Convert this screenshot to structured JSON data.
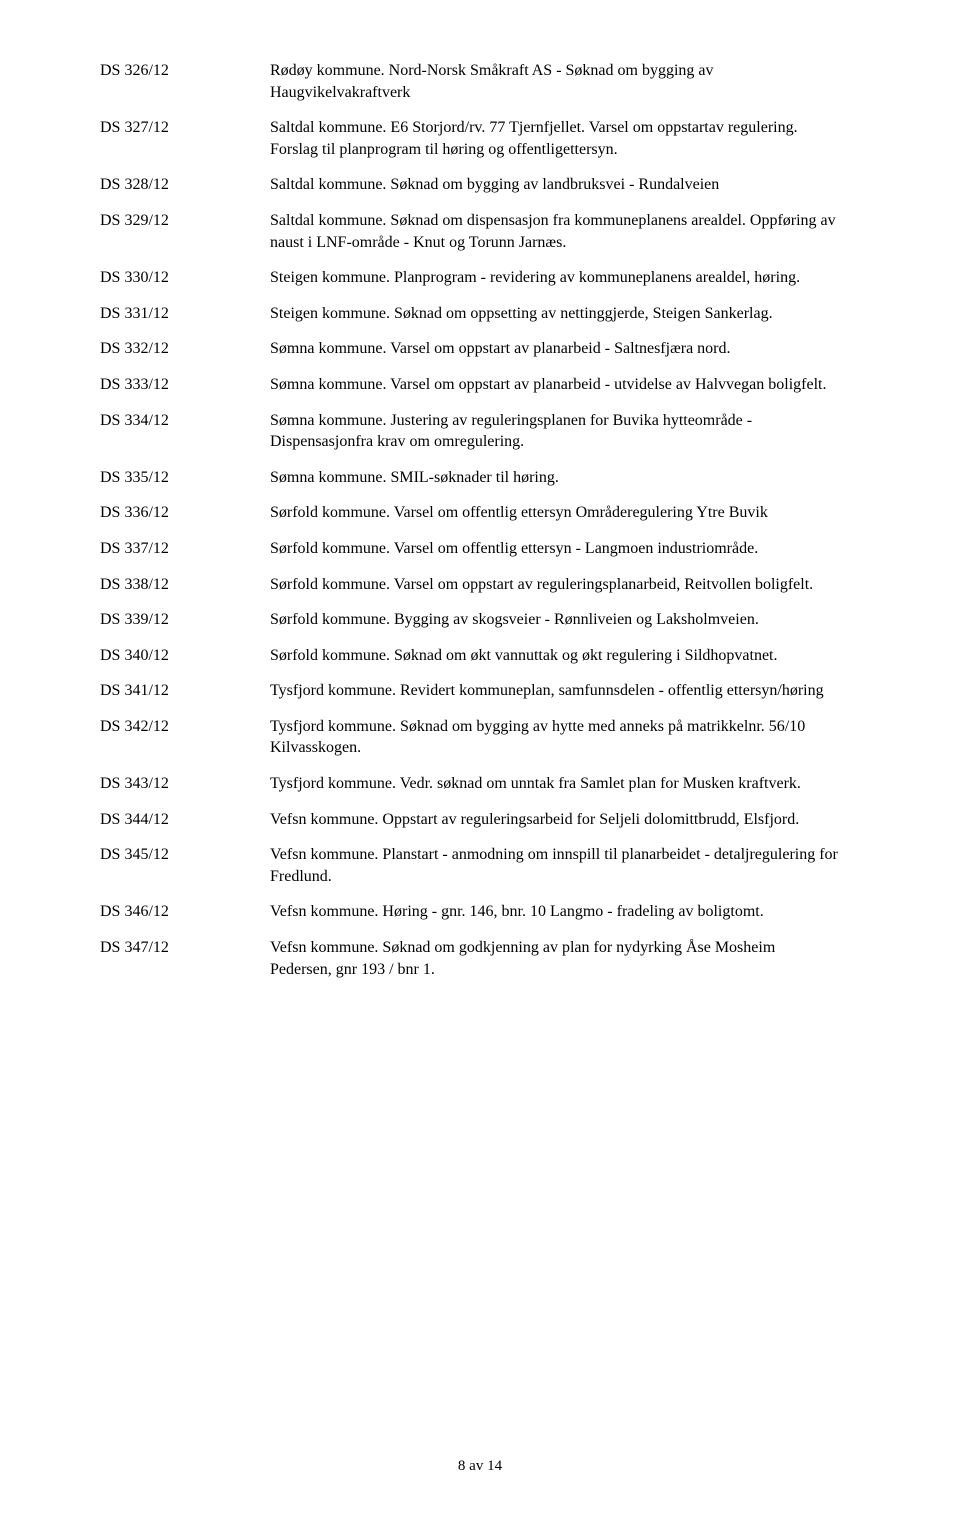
{
  "font_family": "Times New Roman",
  "font_size_pt": 12,
  "text_color": "#000000",
  "background_color": "#ffffff",
  "rows": [
    {
      "id": "DS 326/12",
      "desc": "Rødøy kommune. Nord-Norsk Småkraft AS - Søknad om bygging av Haugvikelvakraftverk"
    },
    {
      "id": "DS 327/12",
      "desc": "Saltdal kommune. E6 Storjord/rv. 77 Tjernfjellet. Varsel om oppstartav regulering. Forslag til planprogram til høring og offentligettersyn."
    },
    {
      "id": "DS 328/12",
      "desc": "Saltdal kommune. Søknad om bygging av landbruksvei - Rundalveien"
    },
    {
      "id": "DS 329/12",
      "desc": "Saltdal kommune. Søknad om dispensasjon fra kommuneplanens arealdel. Oppføring av naust i LNF-område - Knut og Torunn Jarnæs."
    },
    {
      "id": "DS 330/12",
      "desc": "Steigen kommune. Planprogram - revidering av kommuneplanens arealdel, høring."
    },
    {
      "id": "DS 331/12",
      "desc": "Steigen kommune. Søknad om oppsetting av nettinggjerde, Steigen Sankerlag."
    },
    {
      "id": "DS 332/12",
      "desc": "Sømna kommune. Varsel om oppstart av planarbeid - Saltnesfjæra nord."
    },
    {
      "id": "DS 333/12",
      "desc": "Sømna kommune. Varsel om oppstart av planarbeid - utvidelse av Halvvegan boligfelt."
    },
    {
      "id": "DS 334/12",
      "desc": "Sømna kommune. Justering av reguleringsplanen for Buvika hytteområde - Dispensasjonfra krav om omregulering."
    },
    {
      "id": "DS 335/12",
      "desc": "Sømna kommune. SMIL-søknader til høring."
    },
    {
      "id": "DS 336/12",
      "desc": "Sørfold kommune. Varsel om offentlig ettersyn Områderegulering Ytre Buvik"
    },
    {
      "id": "DS 337/12",
      "desc": "Sørfold kommune. Varsel om offentlig ettersyn - Langmoen industriområde."
    },
    {
      "id": "DS 338/12",
      "desc": "Sørfold kommune. Varsel om oppstart av reguleringsplanarbeid, Reitvollen boligfelt."
    },
    {
      "id": "DS 339/12",
      "desc": "Sørfold kommune. Bygging av skogsveier - Rønnliveien og Laksholmveien."
    },
    {
      "id": "DS 340/12",
      "desc": "Sørfold kommune. Søknad om økt vannuttak og økt regulering i Sildhopvatnet."
    },
    {
      "id": "DS 341/12",
      "desc": "Tysfjord kommune. Revidert kommuneplan, samfunnsdelen - offentlig ettersyn/høring"
    },
    {
      "id": "DS 342/12",
      "desc": "Tysfjord kommune. Søknad om bygging av hytte med anneks på matrikkelnr. 56/10 Kilvasskogen."
    },
    {
      "id": "DS 343/12",
      "desc": "Tysfjord kommune. Vedr. søknad om unntak fra Samlet plan for Musken kraftverk."
    },
    {
      "id": "DS 344/12",
      "desc": "Vefsn kommune. Oppstart av reguleringsarbeid for Seljeli dolomittbrudd, Elsfjord."
    },
    {
      "id": "DS 345/12",
      "desc": "Vefsn kommune. Planstart - anmodning om innspill til planarbeidet - detaljregulering for Fredlund."
    },
    {
      "id": "DS 346/12",
      "desc": "Vefsn kommune. Høring - gnr. 146, bnr. 10 Langmo - fradeling av boligtomt."
    },
    {
      "id": "DS 347/12",
      "desc": "Vefsn kommune. Søknad om godkjenning av plan for nydyrking Åse Mosheim Pedersen, gnr 193 / bnr 1."
    }
  ],
  "footer": "8 av 14"
}
